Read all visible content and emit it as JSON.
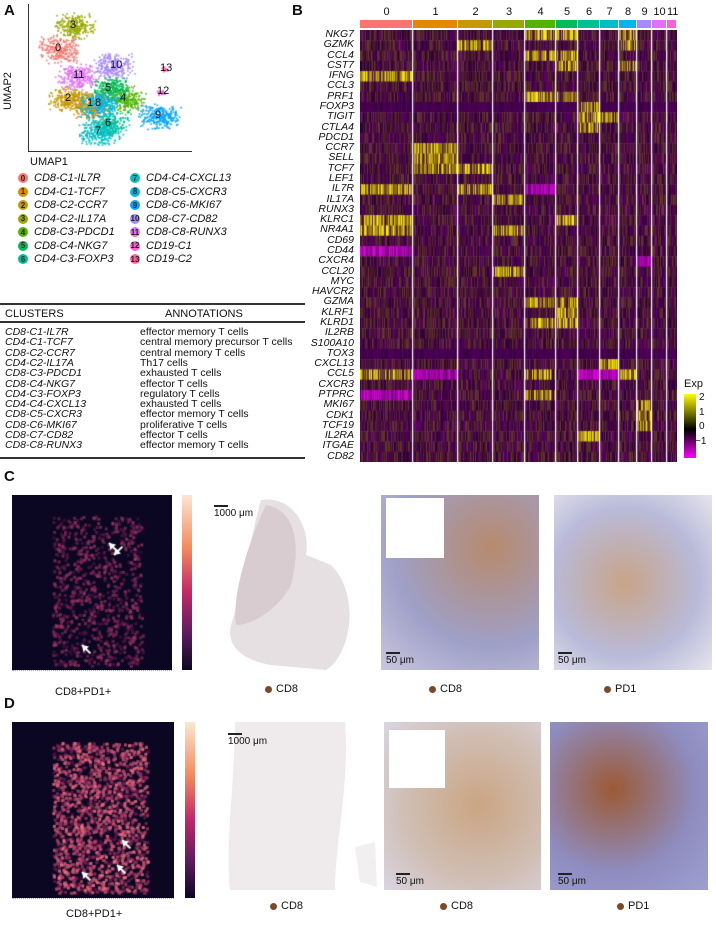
{
  "panels": {
    "a": "A",
    "b": "B",
    "c": "C",
    "d": "D"
  },
  "umap": {
    "xlabel": "UMAP1",
    "ylabel": "UMAP2",
    "cluster_numbers": [
      "0",
      "1",
      "2",
      "3",
      "4",
      "5",
      "6",
      "7",
      "8",
      "9",
      "10",
      "11",
      "12",
      "13"
    ]
  },
  "legend": [
    {
      "num": "0",
      "prefix": "CD8-C1-",
      "gene": "IL7R",
      "color": "#f8766d"
    },
    {
      "num": "1",
      "prefix": "CD4-C1-",
      "gene": "TCF7",
      "color": "#e38900"
    },
    {
      "num": "2",
      "prefix": "CD8-C2-",
      "gene": "CCR7",
      "color": "#c49a00"
    },
    {
      "num": "3",
      "prefix": "CD4-C2-",
      "gene": "IL17A",
      "color": "#99a800"
    },
    {
      "num": "4",
      "prefix": "CD8-C3-",
      "gene": "PDCD1",
      "color": "#53b400"
    },
    {
      "num": "5",
      "prefix": "CD8-C4-",
      "gene": "NKG7",
      "color": "#00bc56"
    },
    {
      "num": "6",
      "prefix": "CD4-C3-",
      "gene": "FOXP3",
      "color": "#00c094"
    },
    {
      "num": "7",
      "prefix": "CD4-C4-",
      "gene": "CXCL13",
      "color": "#00bfc4"
    },
    {
      "num": "8",
      "prefix": "CD8-C5-",
      "gene": "CXCR3",
      "color": "#00b6eb"
    },
    {
      "num": "9",
      "prefix": "CD8-C6-",
      "gene": "MKI67",
      "color": "#06a4ff"
    },
    {
      "num": "10",
      "prefix": "CD8-C7-",
      "gene": "CD82",
      "color": "#a58aff"
    },
    {
      "num": "11",
      "prefix": "CD8-C8-",
      "gene": "RUNX3",
      "color": "#df70f8"
    },
    {
      "num": "12",
      "prefix": "CD19-C1",
      "gene": "",
      "color": "#fb61d7"
    },
    {
      "num": "13",
      "prefix": "CD19-C2",
      "gene": "",
      "color": "#ff66a8"
    }
  ],
  "table": {
    "headers": [
      "CLUSTERS",
      "ANNOTATIONS"
    ],
    "rows": [
      [
        "CD8-C1-IL7R",
        "effector memory T cells"
      ],
      [
        "CD4-C1-TCF7",
        "central memory precursor T cells"
      ],
      [
        "CD8-C2-CCR7",
        "central memory T cells"
      ],
      [
        "CD4-C2-IL17A",
        "Th17 cells"
      ],
      [
        "CD8-C3-PDCD1",
        "exhausted T cells"
      ],
      [
        "CD8-C4-NKG7",
        "effector T cells"
      ],
      [
        "CD4-C3-FOXP3",
        "regulatory T cells"
      ],
      [
        "CD4-C4-CXCL13",
        "exhausted T cells"
      ],
      [
        "CD8-C5-CXCR3",
        "effector memory T cells"
      ],
      [
        "CD8-C6-MKI67",
        "proliferative T cells"
      ],
      [
        "CD8-C7-CD82",
        "effector T cells"
      ],
      [
        "CD8-C8-RUNX3",
        "effector memory T cells"
      ]
    ]
  },
  "heatmap": {
    "clusters": [
      "0",
      "1",
      "2",
      "3",
      "4",
      "5",
      "6",
      "7",
      "8",
      "9",
      "10",
      "11"
    ],
    "cluster_colors": [
      "#f8766d",
      "#e38900",
      "#c49a00",
      "#99a800",
      "#53b400",
      "#00bc56",
      "#00c094",
      "#00bfc4",
      "#00b6eb",
      "#a58aff",
      "#df70f8",
      "#fb61d7"
    ],
    "genes": [
      "NKG7",
      "GZMK",
      "CCL4",
      "CST7",
      "IFNG",
      "CCL3",
      "PRF1",
      "FOXP3",
      "TIGIT",
      "CTLA4",
      "PDCD1",
      "CCR7",
      "SELL",
      "TCF7",
      "LEF1",
      "IL7R",
      "IL17A",
      "RUNX3",
      "KLRC1",
      "NR4A1",
      "CD69",
      "CD44",
      "CXCR4",
      "CCL20",
      "MYC",
      "HAVCR2",
      "GZMA",
      "KLRF1",
      "KLRD1",
      "IL2RB",
      "S100A10",
      "TOX3",
      "CXCL13",
      "CCL5",
      "CXCR3",
      "PTPRC",
      "MKI67",
      "CDK1",
      "TCF19",
      "IL2RA",
      "ITGAE",
      "CD82"
    ],
    "legend_title": "Exp",
    "legend_ticks": [
      "2",
      "1",
      "0",
      "−1"
    ],
    "colorscale": [
      "#ff00ff",
      "#000000",
      "#ffff00"
    ]
  },
  "panel_c": {
    "heatmap_label": "CD8+PD1+",
    "scale_large": "1000 μm",
    "scale_small_1": "50 μm",
    "scale_small_2": "50 μm",
    "stains": [
      "CD8",
      "CD8",
      "PD1"
    ]
  },
  "panel_d": {
    "heatmap_label": "CD8+PD1+",
    "scale_large": "1000 μm",
    "scale_small_1": "50 μm",
    "scale_small_2": "50 μm",
    "stains": [
      "CD8",
      "CD8",
      "PD1"
    ]
  }
}
